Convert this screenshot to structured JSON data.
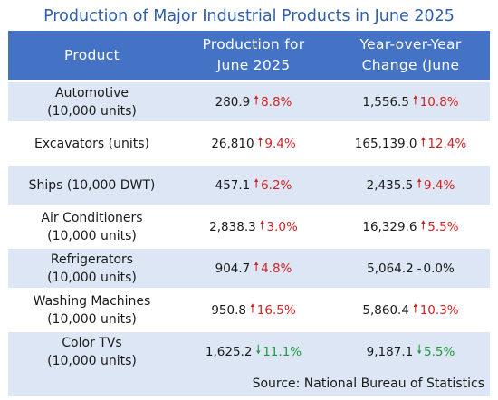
{
  "chart_data": {
    "type": "table",
    "title": "Production of Major Industrial Products in June 2025",
    "columns": [
      "Product",
      "Production for June 2025",
      "Year-over-Year Change (June"
    ],
    "rows": [
      {
        "product": "Automotive",
        "unit": "(10,000 units)",
        "production": "280.9",
        "production_change": "8.8%",
        "production_dir": "up",
        "yoy_value": "1,556.5",
        "yoy_change": "10.8%",
        "yoy_dir": "up"
      },
      {
        "product": "Excavators (units)",
        "unit": "",
        "production": "26,810",
        "production_change": "9.4%",
        "production_dir": "up",
        "yoy_value": "165,139.0",
        "yoy_change": "12.4%",
        "yoy_dir": "up"
      },
      {
        "product": "Ships (10,000 DWT)",
        "unit": "",
        "production": "457.1",
        "production_change": "6.2%",
        "production_dir": "up",
        "yoy_value": "2,435.5",
        "yoy_change": "9.4%",
        "yoy_dir": "up"
      },
      {
        "product": "Air Conditioners",
        "unit": "(10,000 units)",
        "production": "2,838.3",
        "production_change": "3.0%",
        "production_dir": "up",
        "yoy_value": "16,329.6",
        "yoy_change": "5.5%",
        "yoy_dir": "up"
      },
      {
        "product": "Refrigerators",
        "unit": "(10,000 units)",
        "production": "904.7",
        "production_change": "4.8%",
        "production_dir": "up",
        "yoy_value": "5,064.2",
        "yoy_change": "0.0%",
        "yoy_dir": "flat"
      },
      {
        "product": "Washing Machines",
        "unit": "(10,000 units)",
        "production": "950.8",
        "production_change": "16.5%",
        "production_dir": "up",
        "yoy_value": "5,860.4",
        "yoy_change": "10.3%",
        "yoy_dir": "up"
      },
      {
        "product": "Color TVs",
        "unit": "(10,000 units)",
        "production": "1,625.2",
        "production_change": "11.1%",
        "production_dir": "down",
        "yoy_value": "9,187.1",
        "yoy_change": "5.5%",
        "yoy_dir": "down"
      }
    ],
    "source": "Source: National Bureau of Statistics",
    "colors": {
      "header": "#4472c4",
      "band": "#dce6f4",
      "title": "#2f5fa8",
      "up": "#d42020",
      "down": "#1e9c3a"
    }
  },
  "header_lines": {
    "col2": [
      "Production for",
      "June 2025"
    ],
    "col3": [
      "Year-over-Year",
      "Change (June"
    ]
  },
  "arrows": {
    "up": "🠕",
    "down": "🠗",
    "flat": "-"
  }
}
